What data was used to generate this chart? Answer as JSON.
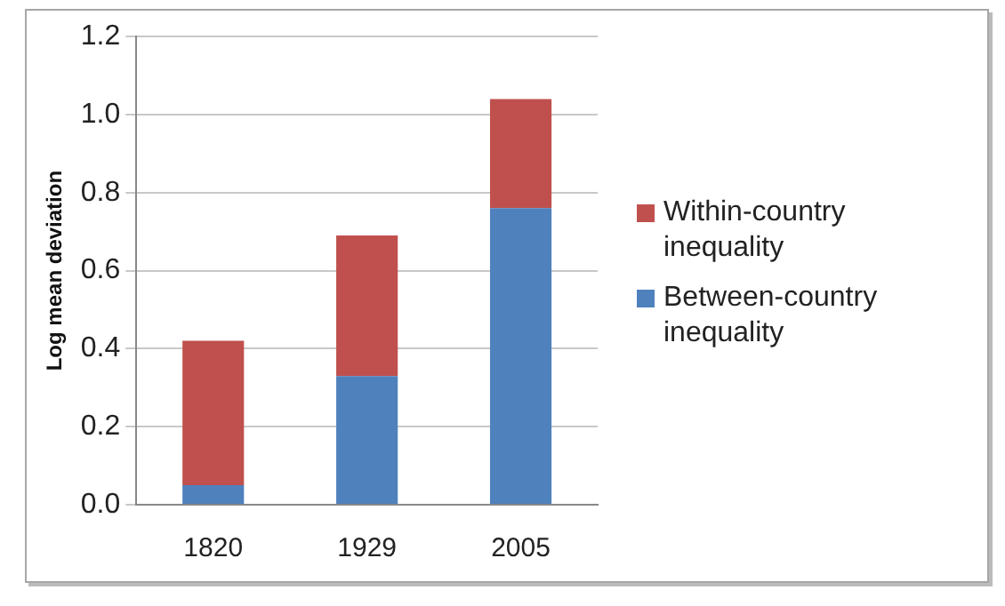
{
  "chart_data": {
    "type": "bar",
    "stacked": true,
    "ylabel": "Log mean deviation",
    "categories": [
      "1820",
      "1929",
      "2005"
    ],
    "series": [
      {
        "name": "Between-country inequality",
        "color": "#4f81bd",
        "values": [
          0.05,
          0.33,
          0.76
        ]
      },
      {
        "name": "Within-country inequality",
        "color": "#c0504d",
        "values": [
          0.37,
          0.36,
          0.28
        ]
      }
    ],
    "ylim": [
      0,
      1.2
    ],
    "yticks": [
      {
        "value": 0,
        "label": "0.0"
      },
      0.2,
      0.4,
      0.6,
      0.8,
      {
        "value": 1,
        "label": "1.0"
      },
      1.2
    ],
    "grid": "y",
    "legend": "right"
  }
}
